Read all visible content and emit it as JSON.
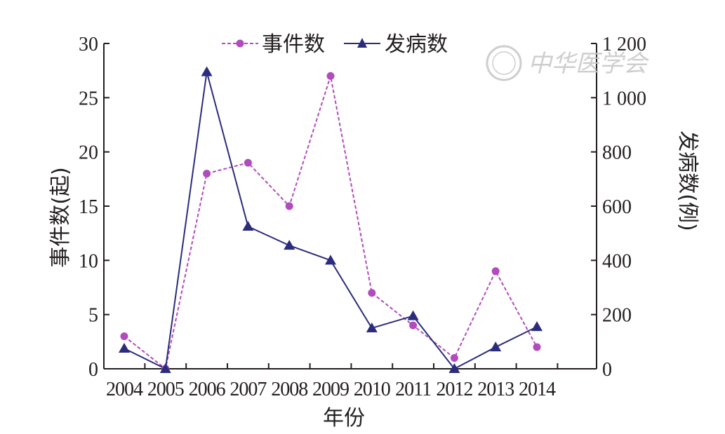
{
  "chart_data": {
    "type": "line",
    "xlabel": "年份",
    "ylabel_left": "事件数(起)",
    "ylabel_right": "发病数(例)",
    "categories": [
      "2004",
      "2005",
      "2006",
      "2007",
      "2008",
      "2009",
      "2010",
      "2011",
      "2012",
      "2013",
      "2014"
    ],
    "left_axis": {
      "ylim": [
        0,
        30
      ],
      "ticks": [
        "0",
        "5",
        "10",
        "15",
        "20",
        "25",
        "30"
      ]
    },
    "right_axis": {
      "ylim": [
        0,
        1200
      ],
      "ticks": [
        "0",
        "200",
        "400",
        "600",
        "800",
        "1 000",
        "1 200"
      ]
    },
    "series": [
      {
        "name": "事件数",
        "axis": "left",
        "color": "#b24bbd",
        "style": "dashed",
        "marker": "circle",
        "values": [
          3,
          0,
          18,
          19,
          15,
          27,
          7,
          4,
          1,
          9,
          2
        ]
      },
      {
        "name": "发病数",
        "axis": "right",
        "color": "#2b2c7c",
        "style": "solid",
        "marker": "triangle",
        "values": [
          75,
          0,
          1095,
          525,
          455,
          400,
          150,
          195,
          0,
          80,
          155
        ]
      }
    ],
    "legend": {
      "position": "top-center"
    },
    "grid": false
  },
  "watermark": {
    "text": "中华医学会"
  }
}
